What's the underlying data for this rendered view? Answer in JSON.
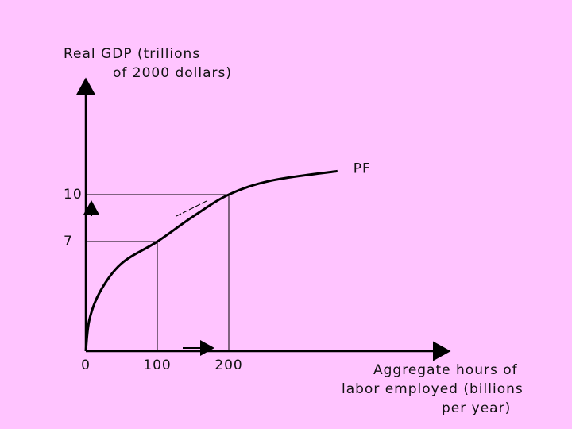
{
  "chart_data": {
    "type": "line",
    "ylabel": [
      "Real GDP (trillions",
      "of 2000 dollars)"
    ],
    "xlabel": [
      "Aggregate hours of",
      "labor employed (billions",
      "per year)"
    ],
    "x": [
      0,
      5,
      20,
      50,
      100,
      150,
      200,
      260,
      352
    ],
    "series": [
      {
        "name": "PF",
        "color": "#000000",
        "values": [
          0,
          2,
          3.8,
          5.6,
          7,
          8.6,
          10,
          10.9,
          11.5
        ]
      }
    ],
    "xlim": [
      0,
      500
    ],
    "ylim": [
      0,
      17
    ],
    "xticks": [
      0,
      100,
      200
    ],
    "yticks": [
      7,
      10
    ]
  }
}
